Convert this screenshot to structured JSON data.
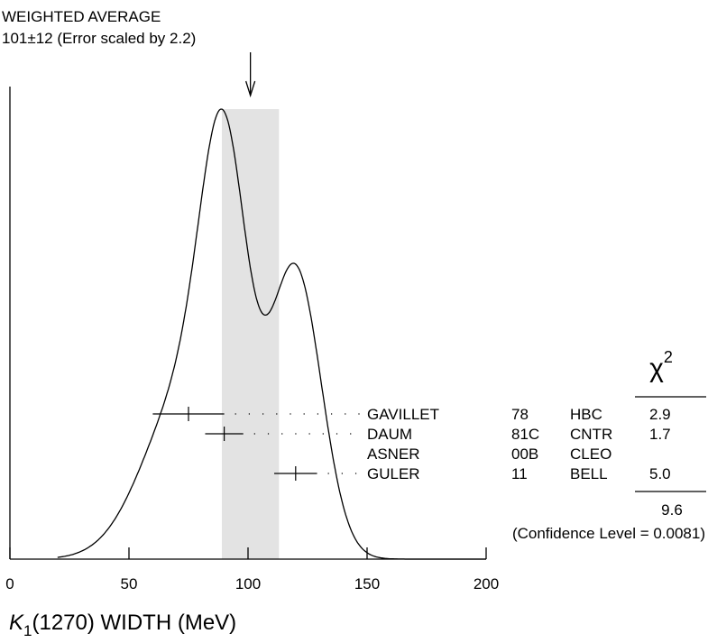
{
  "header": {
    "title": "WEIGHTED AVERAGE",
    "value_line": "101±12 (Error scaled by 2.2)"
  },
  "chart_data": {
    "type": "ideogram",
    "xlabel_main": "K",
    "xlabel_sub": "1",
    "xlabel_rest": "(1270) WIDTH (MeV)",
    "xlim": [
      0,
      200
    ],
    "xticks": [
      0,
      50,
      100,
      150,
      200
    ],
    "xtick_labels": [
      "0",
      "50",
      "100",
      "150",
      "200"
    ],
    "weighted_average": {
      "value": 101,
      "error": 12,
      "scale_factor": 2.2
    },
    "chi2_header": "χ",
    "chi2_superscript": "2",
    "measurements": [
      {
        "author": "GAVILLET",
        "year": "78",
        "technique": "HBC",
        "value": 75,
        "error": 15,
        "chi2": "2.9"
      },
      {
        "author": "DAUM",
        "year": "81C",
        "technique": "CNTR",
        "value": 90,
        "error": 8,
        "chi2": "1.7"
      },
      {
        "author": "ASNER",
        "year": "00B",
        "technique": "CLEO",
        "value": null,
        "error": null,
        "chi2": ""
      },
      {
        "author": "GULER",
        "year": "11",
        "technique": "BELL",
        "value": 120,
        "error": 9,
        "chi2": "5.0"
      }
    ],
    "chi2_total": "9.6",
    "confidence_level": "(Confidence Level = 0.0081)",
    "curve_peaks": [
      {
        "x": 89,
        "relative_height": 1.0
      },
      {
        "x": 120,
        "relative_height": 0.75
      }
    ]
  }
}
